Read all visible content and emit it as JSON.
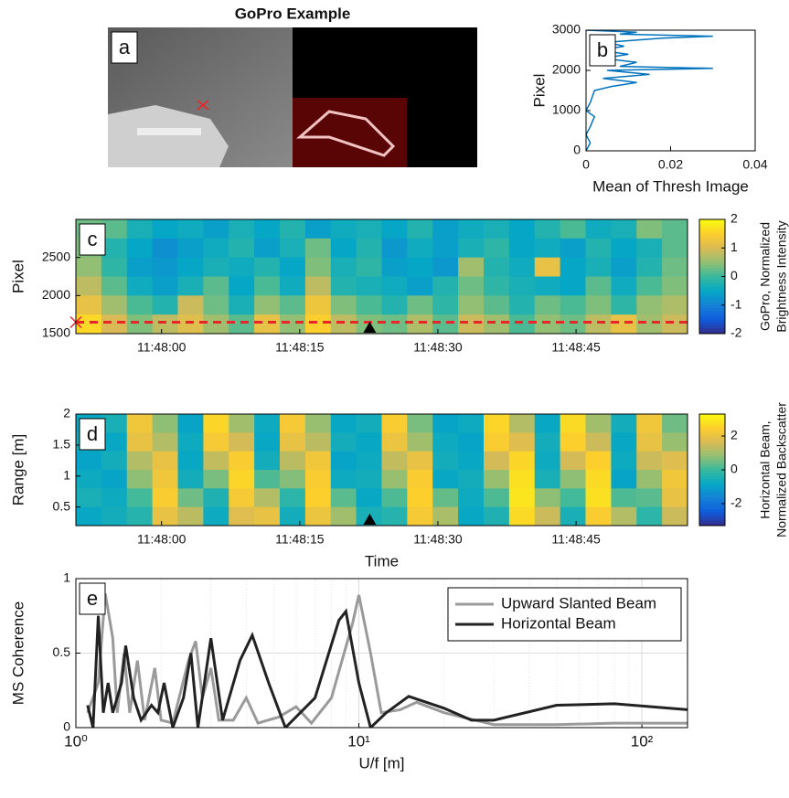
{
  "chart_data": [
    {
      "type": "image",
      "title": "GoPro Example",
      "label": "a"
    },
    {
      "type": "line",
      "label": "b",
      "orientation": "horizontal",
      "color": "#0072bd",
      "xlabel": "Mean of Thresh Image",
      "ylabel": "Pixel",
      "xlim": [
        0,
        0.04
      ],
      "xticks": [
        0,
        0.02,
        0.04
      ],
      "ylim": [
        0,
        3000
      ],
      "yticks": [
        0,
        1000,
        2000,
        3000
      ],
      "y": [
        0,
        200,
        400,
        600,
        850,
        1000,
        1200,
        1500,
        1600,
        1700,
        1800,
        1900,
        2000,
        2050,
        2100,
        2200,
        2300,
        2400,
        2500,
        2600,
        2700,
        2800,
        2850,
        2900,
        2950,
        3000
      ],
      "values": [
        0,
        0.001,
        0,
        0.001,
        0.002,
        0,
        0.001,
        0.002,
        0.006,
        0.012,
        0.004,
        0.015,
        0.005,
        0.03,
        0.008,
        0.012,
        0.004,
        0.01,
        0.003,
        0.009,
        0.005,
        0.018,
        0.03,
        0.008,
        0.012,
        0
      ]
    },
    {
      "type": "heatmap",
      "label": "c",
      "ylabel": "Pixel",
      "colormap": "parula",
      "xlim": [
        -9.3,
        57.1
      ],
      "xticks": [
        {
          "value": 0,
          "label": "11:48:00"
        },
        {
          "value": 15,
          "label": "11:48:15"
        },
        {
          "value": 30,
          "label": "11:48:30"
        },
        {
          "value": 45,
          "label": "11:48:45"
        }
      ],
      "ylim": [
        1500,
        3000
      ],
      "yticks": [
        1500,
        2000,
        2500
      ],
      "marker_x": 22.6,
      "line_y": 1650,
      "line_color": "#e8262a",
      "colorbar": {
        "lim": [
          -2,
          2
        ],
        "ticks": [
          -2,
          -1,
          0,
          1,
          2
        ],
        "label": [
          "GoPro, Normalized",
          "Brightness Intensity"
        ]
      },
      "values": [
        [
          0.3,
          0.2,
          -0.3,
          -0.5,
          -0.4,
          -0.6,
          -0.3,
          -0.5,
          -0.2,
          -0.6,
          -0.4,
          -0.3,
          -0.5,
          -0.2,
          -0.6,
          -0.4,
          -0.3,
          -0.5,
          -0.2,
          0.1,
          -0.4,
          -0.3,
          0.4,
          0.2
        ],
        [
          0.4,
          -0.2,
          -0.5,
          -0.8,
          -0.6,
          -0.4,
          -0.2,
          -0.6,
          -0.3,
          0.3,
          -0.5,
          -0.2,
          -0.7,
          -0.4,
          -0.6,
          -0.3,
          -0.1,
          -0.5,
          -0.4,
          -0.6,
          -0.2,
          -0.5,
          -0.3,
          0.2
        ],
        [
          0.5,
          -0.1,
          -0.6,
          -0.7,
          -0.5,
          -0.3,
          -0.4,
          -0.2,
          -0.5,
          0.4,
          -0.3,
          -0.1,
          -0.6,
          -0.5,
          -0.7,
          0.6,
          -0.2,
          -0.4,
          1.2,
          -0.5,
          -0.3,
          -0.6,
          -0.2,
          0.3
        ],
        [
          0.8,
          0.2,
          -0.4,
          -0.6,
          -0.3,
          0.2,
          -0.5,
          0.1,
          -0.4,
          0.8,
          -0.2,
          -0.3,
          -0.4,
          -0.6,
          -0.2,
          0.3,
          -0.1,
          -0.3,
          -0.4,
          -0.5,
          0.2,
          -0.4,
          0.1,
          0.4
        ],
        [
          1.2,
          0.6,
          0.1,
          -0.2,
          0.9,
          0.3,
          -0.3,
          0.5,
          0.2,
          1.3,
          0.4,
          0.1,
          -0.2,
          0.3,
          -0.1,
          0.5,
          0.2,
          -0.2,
          0.3,
          0.1,
          0.4,
          -0.1,
          0.5,
          0.7
        ],
        [
          1.6,
          1.0,
          0.4,
          0.8,
          1.1,
          0.6,
          0.2,
          1.2,
          0.5,
          1.5,
          0.8,
          0.4,
          0.3,
          0.7,
          0.2,
          0.9,
          0.6,
          0.1,
          0.5,
          0.3,
          0.8,
          1.2,
          0.6,
          0.9
        ]
      ]
    },
    {
      "type": "heatmap",
      "label": "d",
      "ylabel": "Range [m]",
      "xlabel": "Time",
      "colormap": "parula",
      "xlim": [
        -9.3,
        57.1
      ],
      "xticks": [
        {
          "value": 0,
          "label": "11:48:00"
        },
        {
          "value": 15,
          "label": "11:48:15"
        },
        {
          "value": 30,
          "label": "11:48:30"
        },
        {
          "value": 45,
          "label": "11:48:45"
        }
      ],
      "ylim": [
        0.2,
        2
      ],
      "yticks": [
        0.5,
        1,
        1.5,
        2
      ],
      "marker_x": 22.6,
      "colorbar": {
        "lim": [
          -3.3,
          3.3
        ],
        "ticks": [
          -2,
          0,
          2
        ],
        "label": [
          "Horizontal Beam,",
          "Normalized Backscatter"
        ]
      },
      "values": [
        [
          -0.8,
          -0.5,
          2.2,
          0.8,
          -0.9,
          2.6,
          1.0,
          -0.7,
          2.3,
          0.9,
          -0.8,
          -0.6,
          2.4,
          0.6,
          -0.9,
          -0.7,
          2.6,
          1.2,
          -0.8,
          2.7,
          1.0,
          -0.6,
          2.2,
          0.5
        ],
        [
          -0.6,
          -0.8,
          2.0,
          1.2,
          -0.7,
          2.3,
          1.6,
          -0.8,
          2.0,
          1.3,
          -0.6,
          -0.8,
          2.1,
          1.0,
          -0.7,
          -0.9,
          2.4,
          1.8,
          -0.6,
          2.5,
          1.5,
          -0.8,
          2.0,
          0.9
        ],
        [
          -0.9,
          -0.6,
          1.2,
          2.0,
          -0.8,
          1.4,
          2.4,
          -0.6,
          1.3,
          2.2,
          -0.9,
          -0.7,
          1.4,
          2.0,
          -0.6,
          -0.8,
          1.6,
          2.6,
          -0.7,
          1.6,
          2.5,
          -0.7,
          1.5,
          1.8
        ],
        [
          -0.7,
          -0.9,
          0.8,
          2.2,
          -0.6,
          0.6,
          2.6,
          0.2,
          0.7,
          2.4,
          -0.7,
          -0.6,
          0.9,
          2.4,
          -0.8,
          -0.6,
          0.9,
          2.8,
          -0.5,
          0.8,
          2.7,
          -0.9,
          0.9,
          2.2
        ],
        [
          -0.5,
          -0.7,
          0.1,
          2.4,
          0.5,
          -0.4,
          2.3,
          1.2,
          -0.2,
          2.5,
          0.3,
          -0.8,
          0.2,
          2.5,
          0.4,
          -0.7,
          0.2,
          2.9,
          0.8,
          0.1,
          2.8,
          0.2,
          0.3,
          2.0
        ],
        [
          -0.8,
          -0.6,
          -0.3,
          2.0,
          1.3,
          -0.7,
          1.8,
          2.0,
          -0.6,
          2.1,
          1.0,
          -0.5,
          -0.3,
          2.3,
          1.1,
          -0.8,
          -0.4,
          2.7,
          1.5,
          -0.5,
          2.4,
          1.2,
          -0.2,
          1.5
        ]
      ]
    },
    {
      "type": "line",
      "label": "e",
      "xlabel": "U/f [m]",
      "ylabel": "MS Coherence",
      "xlog": true,
      "grid": true,
      "legend": "northeast",
      "xlim": [
        1,
        145
      ],
      "xticks": [
        {
          "value": 1,
          "label": "10⁰"
        },
        {
          "value": 10,
          "label": "10¹"
        },
        {
          "value": 100,
          "label": "10²"
        }
      ],
      "ylim": [
        0,
        1
      ],
      "yticks": [
        0,
        0.5,
        1
      ],
      "series": [
        {
          "name": "Upward Slanted Beam",
          "color": "#9a9a9a",
          "x": [
            1.1,
            1.2,
            1.27,
            1.35,
            1.4,
            1.48,
            1.55,
            1.65,
            1.75,
            1.9,
            2.0,
            2.2,
            2.5,
            2.65,
            2.8,
            3.0,
            3.2,
            3.6,
            4.0,
            4.4,
            5.2,
            6.0,
            6.8,
            8,
            9.5,
            10,
            11,
            12,
            14,
            16,
            20,
            30,
            50,
            80,
            145
          ],
          "values": [
            0.1,
            0.3,
            0.9,
            0.6,
            0.1,
            0.5,
            0.1,
            0.45,
            0.05,
            0.4,
            0.05,
            0.03,
            0.45,
            0.58,
            0.2,
            0.4,
            0.05,
            0.05,
            0.2,
            0.03,
            0.07,
            0.14,
            0.03,
            0.2,
            0.7,
            0.89,
            0.5,
            0.1,
            0.12,
            0.17,
            0.1,
            0.02,
            0.02,
            0.03,
            0.03
          ]
        },
        {
          "name": "Horizontal Beam",
          "color": "#222222",
          "x": [
            1.1,
            1.15,
            1.2,
            1.25,
            1.3,
            1.35,
            1.45,
            1.5,
            1.6,
            1.7,
            1.85,
            1.95,
            2.05,
            2.2,
            2.4,
            2.55,
            2.7,
            3.0,
            3.3,
            3.8,
            4.2,
            4.8,
            5.5,
            7,
            8.5,
            9,
            10,
            11,
            12.5,
            15,
            20,
            25,
            30,
            50,
            80,
            145
          ],
          "values": [
            0.15,
            0,
            0.75,
            0.1,
            0.3,
            0.1,
            0.3,
            0.55,
            0.2,
            0.05,
            0.15,
            0.1,
            0.3,
            0,
            0.2,
            0.5,
            0,
            0.6,
            0.05,
            0.45,
            0.62,
            0.3,
            0,
            0.2,
            0.72,
            0.78,
            0.3,
            0,
            0.1,
            0.21,
            0.13,
            0.05,
            0.05,
            0.15,
            0.16,
            0.12
          ]
        }
      ]
    }
  ]
}
